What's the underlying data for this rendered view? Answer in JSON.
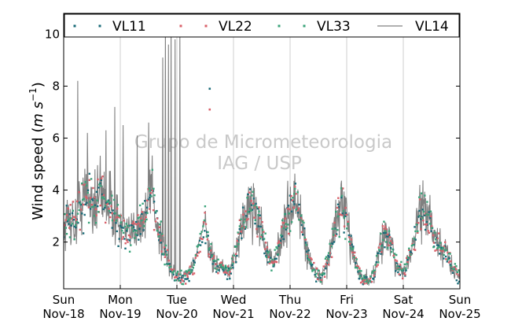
{
  "chart_data": {
    "type": "scatter",
    "title": "",
    "ylabel": "Wind speed",
    "ylabel_unit_base": "m s",
    "ylabel_unit_exp": "−1",
    "ylim": [
      0.2,
      10.8
    ],
    "y_ticks": [
      2,
      4,
      6,
      8,
      10
    ],
    "x_range_days": [
      0,
      7
    ],
    "x_ticks": [
      {
        "day": "Sun",
        "date": "Nov-18"
      },
      {
        "day": "Mon",
        "date": "Nov-19"
      },
      {
        "day": "Tue",
        "date": "Nov-20"
      },
      {
        "day": "Wed",
        "date": "Nov-21"
      },
      {
        "day": "Thu",
        "date": "Nov-22"
      },
      {
        "day": "Fri",
        "date": "Nov-23"
      },
      {
        "day": "Sat",
        "date": "Nov-24"
      },
      {
        "day": "Sun",
        "date": "Nov-25"
      }
    ],
    "vertical_grid": true,
    "legend_position": "top",
    "watermark": [
      "Grupo de Micrometeorologia",
      "IAG / USP"
    ],
    "series": [
      {
        "name": "VL11",
        "style": "dots",
        "color": "#1a6b78"
      },
      {
        "name": "VL22",
        "style": "dots",
        "color": "#d9606a"
      },
      {
        "name": "VL33",
        "style": "dots",
        "color": "#3aa37a"
      },
      {
        "name": "VL14",
        "style": "line",
        "color": "#808080"
      }
    ],
    "profile": {
      "x_days": [
        0.0,
        0.1,
        0.2,
        0.3,
        0.45,
        0.55,
        0.65,
        0.8,
        0.9,
        1.0,
        1.15,
        1.3,
        1.45,
        1.55,
        1.65,
        1.8,
        1.9,
        2.0,
        2.05,
        2.15,
        2.25,
        2.35,
        2.45,
        2.5,
        2.58,
        2.68,
        2.8,
        2.95,
        3.05,
        3.2,
        3.3,
        3.4,
        3.5,
        3.6,
        3.7,
        3.8,
        3.9,
        4.0,
        4.1,
        4.2,
        4.3,
        4.45,
        4.55,
        4.7,
        4.8,
        4.9,
        5.0,
        5.15,
        5.25,
        5.4,
        5.5,
        5.6,
        5.7,
        5.8,
        5.9,
        6.0,
        6.15,
        6.3,
        6.45,
        6.55,
        6.65,
        6.75,
        6.85,
        6.95,
        7.0
      ],
      "y_speed": [
        2.5,
        3.0,
        2.6,
        3.6,
        3.8,
        3.3,
        4.0,
        3.5,
        3.0,
        2.6,
        2.2,
        2.6,
        3.0,
        4.4,
        2.6,
        1.5,
        0.9,
        0.6,
        0.6,
        0.6,
        0.8,
        1.5,
        2.4,
        2.8,
        1.6,
        1.2,
        1.0,
        0.8,
        1.8,
        3.0,
        3.5,
        3.2,
        2.4,
        1.6,
        1.1,
        1.9,
        2.6,
        3.2,
        3.6,
        2.8,
        1.6,
        0.8,
        0.6,
        1.5,
        2.6,
        3.5,
        2.7,
        1.4,
        0.6,
        0.5,
        0.8,
        2.0,
        2.4,
        1.7,
        1.0,
        0.8,
        1.7,
        3.3,
        3.0,
        2.0,
        1.8,
        1.6,
        1.1,
        0.8,
        0.7
      ]
    },
    "vl14_peaks": [
      {
        "x_day": 0.25,
        "y": 8.2
      },
      {
        "x_day": 0.42,
        "y": 6.2
      },
      {
        "x_day": 0.55,
        "y": 4.8
      },
      {
        "x_day": 0.75,
        "y": 6.3
      },
      {
        "x_day": 0.9,
        "y": 7.2
      },
      {
        "x_day": 1.05,
        "y": 6.5
      },
      {
        "x_day": 1.3,
        "y": 6.1
      },
      {
        "x_day": 1.5,
        "y": 6.6
      },
      {
        "x_day": 1.75,
        "y": 9.1
      },
      {
        "x_day": 1.8,
        "y": 10.5
      },
      {
        "x_day": 1.85,
        "y": 9.6
      },
      {
        "x_day": 1.9,
        "y": 10.7
      },
      {
        "x_day": 1.97,
        "y": 9.8
      },
      {
        "x_day": 2.05,
        "y": 10.4
      }
    ],
    "outliers": [
      {
        "x_day": 2.58,
        "y": 7.9
      },
      {
        "x_day": 2.58,
        "y": 7.1
      }
    ]
  }
}
